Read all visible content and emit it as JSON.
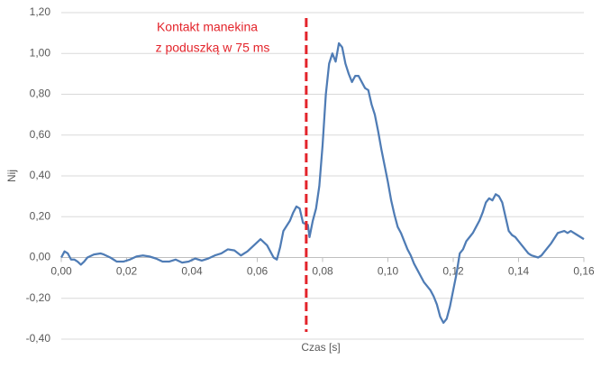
{
  "chart_data": {
    "type": "line",
    "x_label": "Czas [s]",
    "y_label": "Nij",
    "annotation": {
      "lines": [
        "Kontakt manekina",
        "z poduszką w 75 ms"
      ],
      "x": 0.075,
      "color": "#e3242b"
    },
    "x": [
      0,
      0.001,
      0.002,
      0.003,
      0.004,
      0.005,
      0.006,
      0.007,
      0.008,
      0.01,
      0.012,
      0.013,
      0.015,
      0.017,
      0.019,
      0.021,
      0.023,
      0.025,
      0.027,
      0.029,
      0.031,
      0.033,
      0.035,
      0.037,
      0.039,
      0.041,
      0.043,
      0.045,
      0.047,
      0.049,
      0.051,
      0.053,
      0.055,
      0.057,
      0.059,
      0.061,
      0.063,
      0.065,
      0.066,
      0.067,
      0.068,
      0.07,
      0.071,
      0.072,
      0.073,
      0.074,
      0.0755,
      0.076,
      0.077,
      0.078,
      0.079,
      0.08,
      0.081,
      0.082,
      0.083,
      0.084,
      0.085,
      0.086,
      0.087,
      0.088,
      0.089,
      0.09,
      0.091,
      0.092,
      0.093,
      0.094,
      0.095,
      0.096,
      0.097,
      0.098,
      0.099,
      0.1,
      0.101,
      0.102,
      0.103,
      0.104,
      0.105,
      0.106,
      0.107,
      0.108,
      0.109,
      0.11,
      0.111,
      0.112,
      0.113,
      0.114,
      0.115,
      0.116,
      0.117,
      0.118,
      0.119,
      0.12,
      0.121,
      0.122,
      0.123,
      0.124,
      0.125,
      0.126,
      0.127,
      0.128,
      0.129,
      0.13,
      0.131,
      0.132,
      0.133,
      0.134,
      0.135,
      0.136,
      0.137,
      0.138,
      0.139,
      0.14,
      0.141,
      0.142,
      0.143,
      0.144,
      0.146,
      0.147,
      0.148,
      0.15,
      0.152,
      0.154,
      0.155,
      0.156,
      0.158,
      0.16
    ],
    "series": [
      {
        "name": "Nij",
        "color": "#4f7cb5",
        "values": [
          0.0,
          0.03,
          0.02,
          -0.01,
          -0.01,
          -0.02,
          -0.035,
          -0.02,
          0.0,
          0.015,
          0.02,
          0.015,
          0.0,
          -0.02,
          -0.02,
          -0.01,
          0.005,
          0.01,
          0.005,
          -0.005,
          -0.02,
          -0.02,
          -0.01,
          -0.025,
          -0.02,
          -0.005,
          -0.015,
          -0.005,
          0.01,
          0.02,
          0.04,
          0.035,
          0.01,
          0.03,
          0.06,
          0.09,
          0.06,
          0.0,
          -0.01,
          0.05,
          0.13,
          0.18,
          0.22,
          0.25,
          0.24,
          0.17,
          0.16,
          0.1,
          0.18,
          0.24,
          0.35,
          0.55,
          0.8,
          0.95,
          1.0,
          0.96,
          1.05,
          1.03,
          0.95,
          0.9,
          0.86,
          0.89,
          0.89,
          0.86,
          0.83,
          0.82,
          0.75,
          0.7,
          0.62,
          0.53,
          0.45,
          0.37,
          0.28,
          0.21,
          0.15,
          0.12,
          0.08,
          0.04,
          0.01,
          -0.03,
          -0.06,
          -0.09,
          -0.12,
          -0.14,
          -0.16,
          -0.19,
          -0.23,
          -0.29,
          -0.32,
          -0.3,
          -0.24,
          -0.16,
          -0.08,
          0.02,
          0.04,
          0.08,
          0.1,
          0.12,
          0.15,
          0.18,
          0.22,
          0.27,
          0.29,
          0.28,
          0.31,
          0.3,
          0.27,
          0.2,
          0.13,
          0.11,
          0.1,
          0.08,
          0.06,
          0.04,
          0.02,
          0.01,
          0.0,
          0.01,
          0.03,
          0.07,
          0.12,
          0.13,
          0.12,
          0.13,
          0.11,
          0.09
        ]
      }
    ],
    "xlim": [
      0,
      0.16
    ],
    "xticks": [
      {
        "value": 0,
        "label": "0,00"
      },
      {
        "value": 0.02,
        "label": "0,02"
      },
      {
        "value": 0.04,
        "label": "0,04"
      },
      {
        "value": 0.06,
        "label": "0,06"
      },
      {
        "value": 0.08,
        "label": "0,08"
      },
      {
        "value": 0.1,
        "label": "0,10"
      },
      {
        "value": 0.12,
        "label": "0,12"
      },
      {
        "value": 0.14,
        "label": "0,14"
      },
      {
        "value": 0.16,
        "label": "0,16"
      }
    ],
    "ylim": [
      -0.4,
      1.2
    ],
    "yticks": [
      {
        "value": -0.4,
        "label": "-0,40"
      },
      {
        "value": -0.2,
        "label": "-0,20"
      },
      {
        "value": 0,
        "label": "0,00"
      },
      {
        "value": 0.2,
        "label": "0,20"
      },
      {
        "value": 0.4,
        "label": "0,40"
      },
      {
        "value": 0.6,
        "label": "0,60"
      },
      {
        "value": 0.8,
        "label": "0,80"
      },
      {
        "value": 1,
        "label": "1,00"
      },
      {
        "value": 1.2,
        "label": "1,20"
      }
    ],
    "grid": true
  }
}
